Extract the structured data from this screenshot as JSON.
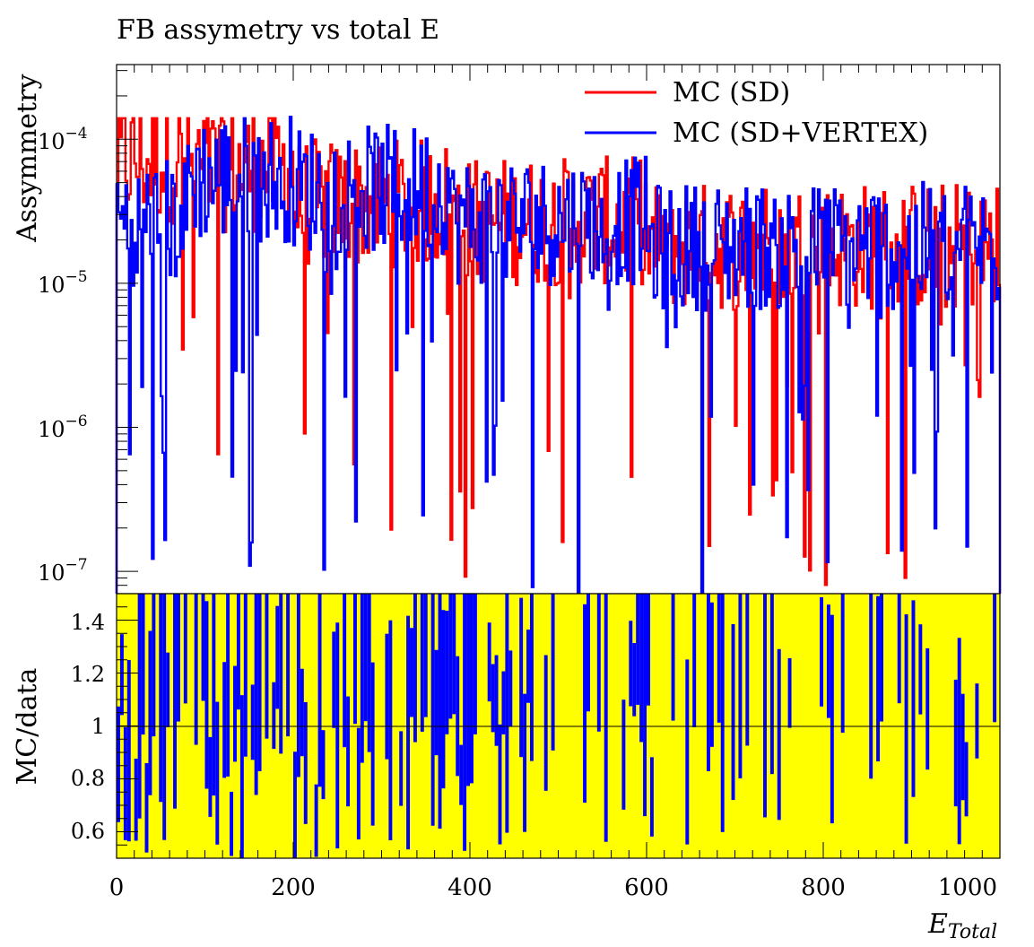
{
  "chart_data": [
    {
      "type": "histogram",
      "panel": "main",
      "title": "FB assymetry vs total E",
      "xlabel": "",
      "ylabel": "Assymmetry",
      "y_scale": "log",
      "xlim": [
        0,
        1000
      ],
      "ylim": [
        7e-08,
        0.00033
      ],
      "y_ticks": [
        {
          "value": 1e-07,
          "mantissa": "10",
          "exponent": "−7"
        },
        {
          "value": 1e-06,
          "mantissa": "10",
          "exponent": "−6"
        },
        {
          "value": 1e-05,
          "mantissa": "10",
          "exponent": "−5"
        },
        {
          "value": 0.0001,
          "mantissa": "10",
          "exponent": "−4"
        }
      ],
      "legend": {
        "position": "top-right",
        "entries": [
          {
            "label": "MC (SD)",
            "color": "#ff0000"
          },
          {
            "label": "MC (SD+VERTEX)",
            "color": "#0000ff"
          }
        ]
      },
      "bin_width": 2,
      "series": [
        {
          "name": "MC (SD)",
          "color": "#ff0000",
          "x_bins": [
            [
              0,
              80
            ],
            [
              80,
              200
            ],
            [
              200,
              380
            ],
            [
              380,
              600
            ],
            [
              600,
              1000
            ]
          ],
          "typical_value": [
            8e-05,
            7e-05,
            4e-05,
            3e-05,
            2e-05
          ],
          "max_value": 0.00014
        },
        {
          "name": "MC (SD+VERTEX)",
          "color": "#0000ff",
          "x_bins": [
            [
              0,
              80
            ],
            [
              80,
              200
            ],
            [
              200,
              380
            ],
            [
              380,
              600
            ],
            [
              600,
              1000
            ]
          ],
          "typical_value": [
            3e-05,
            6e-05,
            5e-05,
            3e-05,
            2e-05
          ],
          "max_value": 0.0002
        }
      ]
    },
    {
      "type": "histogram",
      "panel": "ratio",
      "xlabel": "E_Total",
      "ylabel": "MC/data",
      "xlim": [
        0,
        1000
      ],
      "ylim": [
        0.5,
        1.5
      ],
      "reference_line": 1,
      "x_ticks": [
        0,
        200,
        400,
        600,
        800,
        1000
      ],
      "y_ticks": [
        0.6,
        0.8,
        1,
        1.2,
        1.4
      ],
      "band_color": "#ffff00",
      "series_color": "#0000ff"
    }
  ],
  "labels": {
    "title": "FB assymetry vs total E",
    "ylabel_top": "Assymmetry",
    "ylabel_bottom": "MC/data",
    "xlabel_base": "E",
    "xlabel_sub": "Total",
    "legend_sd": "MC (SD)",
    "legend_sdv": "MC (SD+VERTEX)",
    "x_tick_0": "0",
    "x_tick_200": "200",
    "x_tick_400": "400",
    "x_tick_600": "600",
    "x_tick_800": "800",
    "x_tick_1000": "1000",
    "ry_06": "0.6",
    "ry_08": "0.8",
    "ry_1": "1",
    "ry_12": "1.2",
    "ry_14": "1.4"
  }
}
